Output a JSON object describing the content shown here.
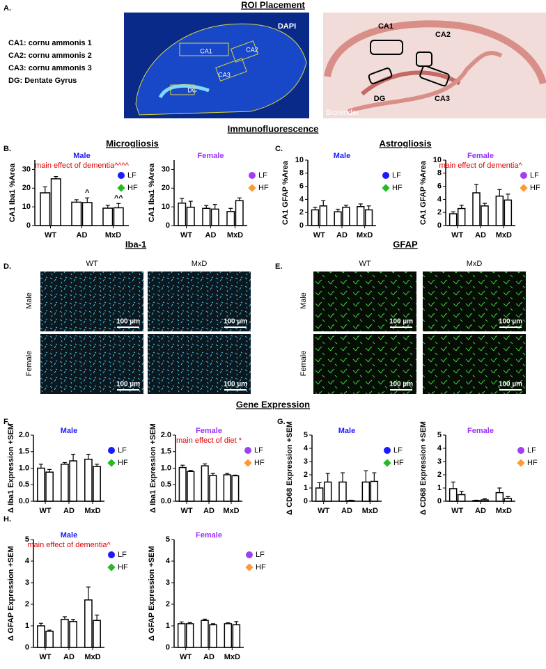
{
  "figure": {
    "panels": [
      "A.",
      "B.",
      "C.",
      "D.",
      "E.",
      "F.",
      "G.",
      "H."
    ],
    "headings": [
      "ROI Placement",
      "Immunofluorescence",
      "Gene Expression"
    ],
    "section_labels": [
      "Microgliosis",
      "Astrogliosis",
      "Iba-1",
      "GFAP"
    ],
    "roi_definitions": [
      "CA1: cornu ammonis 1",
      "CA2: cornu ammonis 2",
      "CA3: cornu ammonis 3",
      "DG: Dentate Gyrus"
    ],
    "dapi_labels": [
      "DAPI",
      "CA1",
      "CA2",
      "CA3",
      "DG"
    ],
    "schematic_labels": [
      "CA1",
      "CA2",
      "DG",
      "CA3",
      "Biorender"
    ],
    "image_columns": [
      "WT",
      "MxD"
    ],
    "image_rows": [
      "Male",
      "Female"
    ],
    "scale_bar": "100 µm"
  },
  "chart_data": [
    {
      "type": "bar",
      "title": "Male",
      "title_color": "#1a1aff",
      "annotation": "main effect of dementia^^^^",
      "ylabel": "CA1 Iba1 %Area",
      "categories": [
        "WT",
        "AD",
        "MxD"
      ],
      "ylim": [
        0,
        35
      ],
      "yticks": [
        0,
        10,
        20,
        30
      ],
      "series": [
        {
          "name": "LF",
          "color": "#1a1aff",
          "marker": "circle",
          "values": [
            17.5,
            12.5,
            9.3
          ],
          "errors": [
            3.2,
            1.3,
            1.5
          ],
          "value_annotations": [
            null,
            null,
            null
          ]
        },
        {
          "name": "HF",
          "color": "#22bb22",
          "marker": "diamond",
          "values": [
            25,
            12.3,
            9.5
          ],
          "errors": [
            1.2,
            2.5,
            2.3
          ],
          "value_annotations": [
            null,
            "^",
            "^^"
          ]
        }
      ]
    },
    {
      "type": "bar",
      "title": "Female",
      "title_color": "#9b30ff",
      "ylabel": "CA1 Iba1 %Area",
      "categories": [
        "WT",
        "AD",
        "MxD"
      ],
      "ylim": [
        0,
        35
      ],
      "yticks": [
        0,
        10,
        20,
        30
      ],
      "series": [
        {
          "name": "LF",
          "color": "#a040f0",
          "marker": "circle",
          "values": [
            12,
            9.2,
            7.5
          ],
          "errors": [
            2.5,
            1.5,
            1.7
          ]
        },
        {
          "name": "HF",
          "color": "#ff9933",
          "marker": "diamond",
          "values": [
            9.8,
            8.8,
            13.3
          ],
          "errors": [
            3.2,
            2.5,
            1.5
          ]
        }
      ]
    },
    {
      "type": "bar",
      "title": "Male",
      "title_color": "#1a1aff",
      "ylabel": "CA1 GFAP %Area",
      "categories": [
        "WT",
        "AD",
        "MxD"
      ],
      "ylim": [
        0,
        10
      ],
      "yticks": [
        0,
        2,
        4,
        6,
        8,
        10
      ],
      "series": [
        {
          "name": "LF",
          "color": "#1a1aff",
          "marker": "circle",
          "values": [
            2.4,
            2.1,
            2.9
          ],
          "errors": [
            0.4,
            0.4,
            0.4
          ]
        },
        {
          "name": "HF",
          "color": "#22bb22",
          "marker": "diamond",
          "values": [
            3.0,
            2.8,
            2.4
          ],
          "errors": [
            0.8,
            0.3,
            0.6
          ]
        }
      ]
    },
    {
      "type": "bar",
      "title": "Female",
      "title_color": "#9b30ff",
      "annotation": "main effect of dementia^",
      "ylabel": "CA1 GFAP %Area",
      "categories": [
        "WT",
        "AD",
        "MxD"
      ],
      "ylim": [
        0,
        10
      ],
      "yticks": [
        0,
        2,
        4,
        6,
        8,
        10
      ],
      "series": [
        {
          "name": "LF",
          "color": "#a040f0",
          "marker": "circle",
          "values": [
            1.8,
            5.0,
            4.5
          ],
          "errors": [
            0.3,
            1.3,
            1.0
          ]
        },
        {
          "name": "HF",
          "color": "#ff9933",
          "marker": "diamond",
          "values": [
            2.6,
            3.0,
            3.9
          ],
          "errors": [
            0.5,
            0.4,
            0.9
          ]
        }
      ]
    },
    {
      "type": "bar",
      "title": "Male",
      "title_color": "#1a1aff",
      "ylabel": "Δ Iba1 Expression +SEM",
      "categories": [
        "WT",
        "AD",
        "MxD"
      ],
      "ylim": [
        0,
        2
      ],
      "yticks": [
        {
          "value": 0,
          "label": "0.0"
        },
        0.5,
        {
          "value": 1,
          "label": "1.0"
        },
        1.5,
        {
          "value": 2,
          "label": "2.0"
        }
      ],
      "series": [
        {
          "name": "LF",
          "color": "#1a1aff",
          "marker": "circle",
          "values": [
            1.0,
            1.12,
            1.27
          ],
          "errors": [
            0.12,
            0.05,
            0.15
          ]
        },
        {
          "name": "HF",
          "color": "#22bb22",
          "marker": "diamond",
          "values": [
            0.88,
            1.22,
            1.05
          ],
          "errors": [
            0.08,
            0.2,
            0.07
          ]
        }
      ]
    },
    {
      "type": "bar",
      "title": "Female",
      "title_color": "#9b30ff",
      "annotation": "main effect of diet *",
      "ylabel": "Δ Iba1 Expression +SEM",
      "categories": [
        "WT",
        "AD",
        "MxD"
      ],
      "ylim": [
        0,
        2
      ],
      "yticks": [
        {
          "value": 0,
          "label": "0.0"
        },
        0.5,
        {
          "value": 1,
          "label": "1.0"
        },
        1.5,
        {
          "value": 2,
          "label": "2.0"
        }
      ],
      "series": [
        {
          "name": "LF",
          "color": "#a040f0",
          "marker": "circle",
          "values": [
            1.02,
            1.07,
            0.8
          ],
          "errors": [
            0.07,
            0.06,
            0.04
          ]
        },
        {
          "name": "HF",
          "color": "#ff9933",
          "marker": "diamond",
          "values": [
            0.9,
            0.78,
            0.77
          ],
          "errors": [
            0.03,
            0.06,
            0.02
          ]
        }
      ]
    },
    {
      "type": "bar",
      "title": "Male",
      "title_color": "#1a1aff",
      "ylabel": "Δ CD68 Expression +SEM",
      "categories": [
        "WT",
        "AD",
        "MxD"
      ],
      "ylim": [
        0,
        5
      ],
      "yticks": [
        0,
        1,
        2,
        3,
        4,
        5
      ],
      "series": [
        {
          "name": "LF",
          "color": "#1a1aff",
          "marker": "circle",
          "values": [
            1.0,
            1.45,
            1.45
          ],
          "errors": [
            0.4,
            0.7,
            0.85
          ]
        },
        {
          "name": "HF",
          "color": "#22bb22",
          "marker": "diamond",
          "values": [
            1.45,
            0.05,
            1.5
          ],
          "errors": [
            0.65,
            0.03,
            0.65
          ]
        }
      ]
    },
    {
      "type": "bar",
      "title": "Female",
      "title_color": "#9b30ff",
      "ylabel": "Δ CD68 Expression +SEM",
      "categories": [
        "WT",
        "AD",
        "MxD"
      ],
      "ylim": [
        0,
        5
      ],
      "yticks": [
        0,
        1,
        2,
        3,
        4,
        5
      ],
      "series": [
        {
          "name": "LF",
          "color": "#a040f0",
          "marker": "circle",
          "values": [
            0.95,
            0.05,
            0.65
          ],
          "errors": [
            0.5,
            0.03,
            0.35
          ]
        },
        {
          "name": "HF",
          "color": "#ff9933",
          "marker": "diamond",
          "values": [
            0.5,
            0.1,
            0.2
          ],
          "errors": [
            0.25,
            0.08,
            0.15
          ]
        }
      ]
    },
    {
      "type": "bar",
      "title": "Male",
      "title_color": "#1a1aff",
      "annotation": "main effect of dementia^",
      "ylabel": "Δ GFAP Expression +SEM",
      "categories": [
        "WT",
        "AD",
        "MxD"
      ],
      "ylim": [
        0,
        5
      ],
      "yticks": [
        0,
        1,
        2,
        3,
        4,
        5
      ],
      "series": [
        {
          "name": "LF",
          "color": "#1a1aff",
          "marker": "circle",
          "values": [
            1.0,
            1.3,
            2.2
          ],
          "errors": [
            0.12,
            0.12,
            0.6
          ]
        },
        {
          "name": "HF",
          "color": "#22bb22",
          "marker": "diamond",
          "values": [
            0.75,
            1.2,
            1.25
          ],
          "errors": [
            0.05,
            0.1,
            0.25
          ]
        }
      ]
    },
    {
      "type": "bar",
      "title": "Female",
      "title_color": "#9b30ff",
      "ylabel": "Δ GFAP Expression +SEM",
      "categories": [
        "WT",
        "AD",
        "MxD"
      ],
      "ylim": [
        0,
        5
      ],
      "yticks": [
        0,
        1,
        2,
        3,
        4,
        5
      ],
      "series": [
        {
          "name": "LF",
          "color": "#a040f0",
          "marker": "circle",
          "values": [
            1.1,
            1.25,
            1.1
          ],
          "errors": [
            0.08,
            0.06,
            0.04
          ]
        },
        {
          "name": "HF",
          "color": "#ff9933",
          "marker": "diamond",
          "values": [
            1.1,
            1.05,
            1.05
          ],
          "errors": [
            0.05,
            0.05,
            0.15
          ]
        }
      ]
    }
  ]
}
